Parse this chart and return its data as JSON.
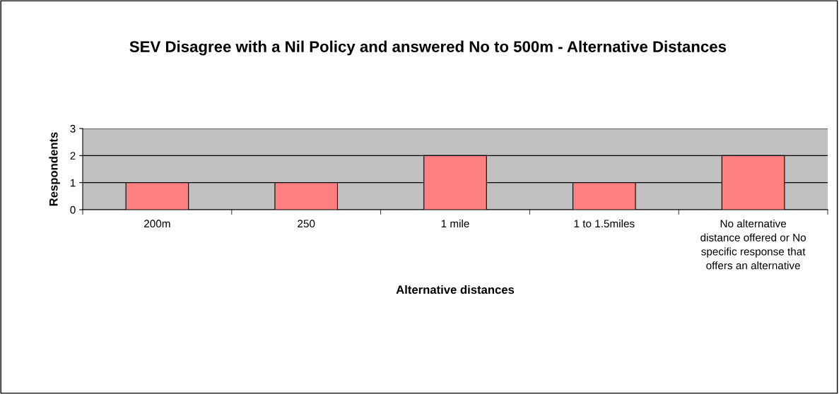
{
  "chart_data": {
    "type": "bar",
    "title": "SEV Disagree with a Nil Policy and answered No to 500m - Alternative Distances",
    "xlabel": "Alternative distances",
    "ylabel": "Respondents",
    "categories": [
      "200m",
      "250",
      "1 mile",
      "1 to 1.5miles",
      "No alternative distance offered or No specific response that offers an alternative"
    ],
    "values": [
      1,
      1,
      2,
      1,
      2
    ],
    "color": "#ff8080",
    "ylim": [
      0,
      3
    ],
    "yticks": [
      0,
      1,
      2,
      3
    ],
    "grid": "y",
    "legend": false
  }
}
